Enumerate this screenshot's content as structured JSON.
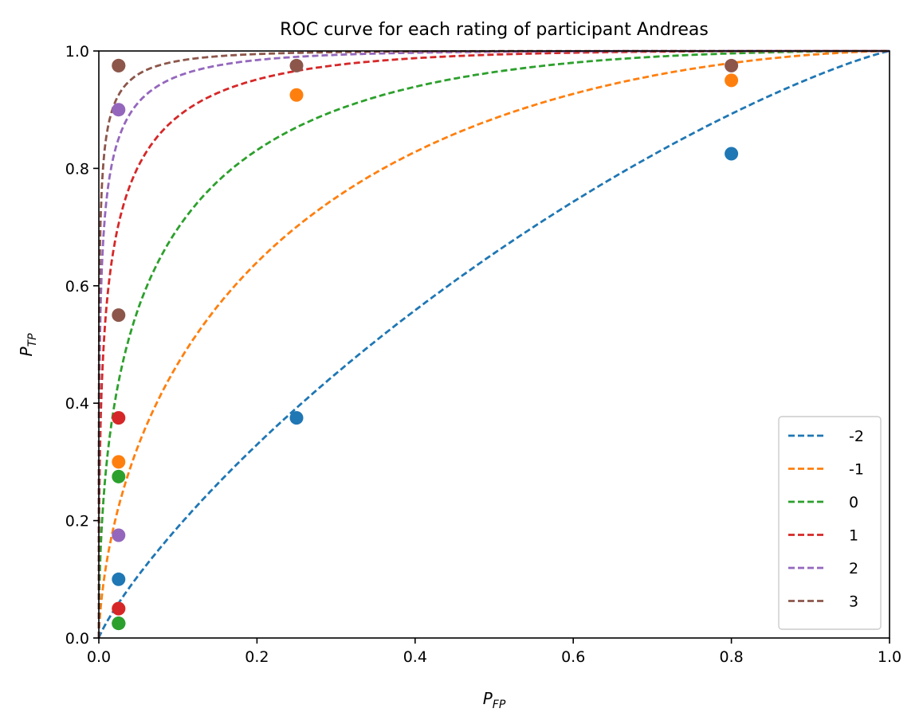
{
  "chart_data": {
    "type": "line",
    "title": "ROC curve for each rating of participant Andreas",
    "xlabel": {
      "main": "P",
      "sub": "FP"
    },
    "ylabel": {
      "main": "P",
      "sub": "TP"
    },
    "xlim": [
      0.0,
      1.0
    ],
    "ylim": [
      0.0,
      1.0
    ],
    "xticks": [
      0.0,
      0.2,
      0.4,
      0.6,
      0.8,
      1.0
    ],
    "yticks": [
      0.0,
      0.2,
      0.4,
      0.6,
      0.8,
      1.0
    ],
    "xtick_labels": [
      "0.0",
      "0.2",
      "0.4",
      "0.6",
      "0.8",
      "1.0"
    ],
    "ytick_labels": [
      "0.0",
      "0.2",
      "0.4",
      "0.6",
      "0.8",
      "1.0"
    ],
    "grid": false,
    "legend_position": "bottom-right",
    "series": [
      {
        "name": "-2",
        "color": "#1f77b4",
        "dprime": 0.4,
        "points": [
          [
            0.025,
            0.025
          ],
          [
            0.025,
            0.1
          ],
          [
            0.25,
            0.375
          ],
          [
            0.8,
            0.825
          ]
        ]
      },
      {
        "name": "-1",
        "color": "#ff7f0e",
        "dprime": 1.2,
        "points": [
          [
            0.025,
            0.05
          ],
          [
            0.025,
            0.3
          ],
          [
            0.25,
            0.925
          ],
          [
            0.8,
            0.95
          ]
        ]
      },
      {
        "name": "0",
        "color": "#2ca02c",
        "dprime": 1.8,
        "points": [
          [
            0.025,
            0.025
          ],
          [
            0.025,
            0.275
          ],
          [
            0.025,
            0.025
          ]
        ]
      },
      {
        "name": "1",
        "color": "#d62728",
        "dprime": 2.5,
        "points": [
          [
            0.025,
            0.05
          ],
          [
            0.025,
            0.375
          ]
        ]
      },
      {
        "name": "2",
        "color": "#9467bd",
        "dprime": 3.0,
        "points": [
          [
            0.025,
            0.175
          ],
          [
            0.025,
            0.9
          ]
        ]
      },
      {
        "name": "3",
        "color": "#8c564b",
        "dprime": 3.4,
        "points": [
          [
            0.025,
            0.55
          ],
          [
            0.025,
            0.975
          ],
          [
            0.025,
            0.975
          ],
          [
            0.25,
            0.975
          ],
          [
            0.8,
            0.975
          ]
        ]
      }
    ]
  }
}
